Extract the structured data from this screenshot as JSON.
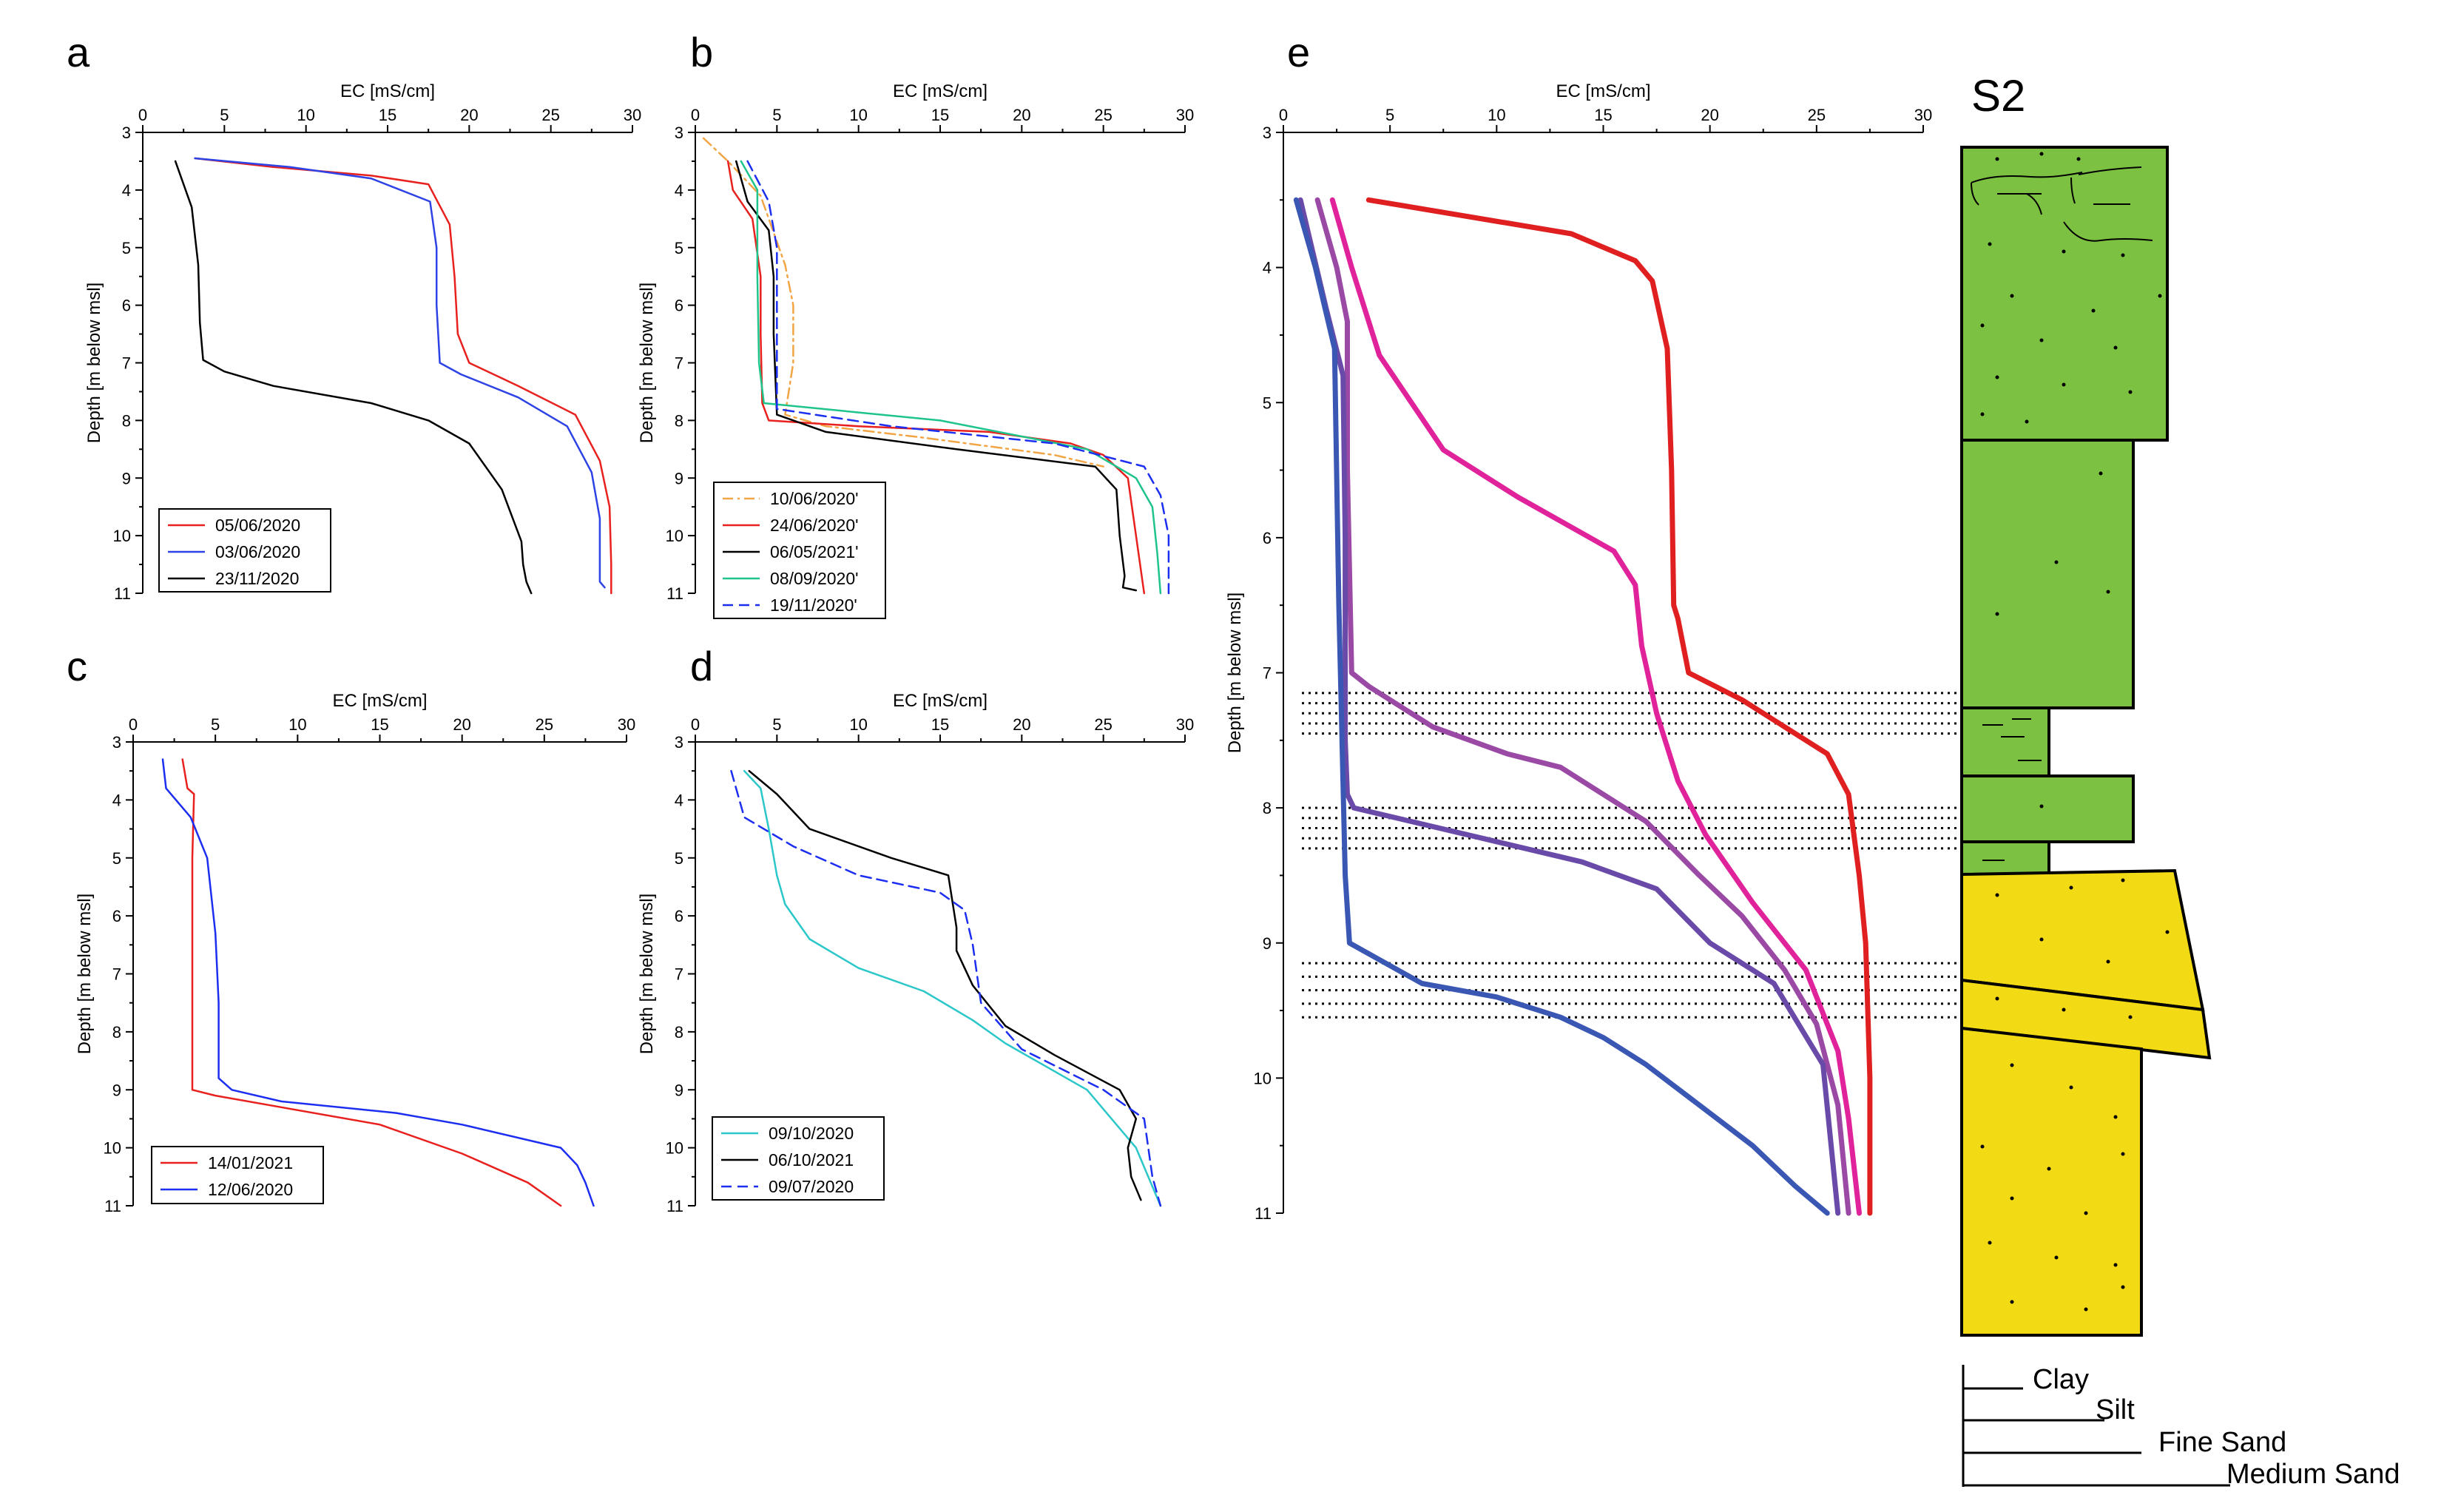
{
  "figure": {
    "strat_column": {
      "title": "S2",
      "grain_sizes": [
        "Clay",
        "Silt",
        "Fine Sand",
        "Medium Sand"
      ],
      "colors": {
        "silt_fill": "#7cc142",
        "sand_fill": "#f2da14",
        "outline": "#000000"
      }
    }
  },
  "chart_data": [
    {
      "id": "a",
      "panel_label": "a",
      "type": "line",
      "xlabel": "EC [mS/cm]",
      "ylabel": "Depth [m below msl]",
      "xlim": [
        0,
        30
      ],
      "ylim": [
        3,
        11
      ],
      "xticks": [
        "0",
        "5",
        "10",
        "15",
        "20",
        "25",
        "30"
      ],
      "yticks": [
        "3",
        "4",
        "5",
        "6",
        "7",
        "8",
        "9",
        "10",
        "11"
      ],
      "series": [
        {
          "name": "05/06/2020",
          "color": "#e8211e",
          "style": "solid",
          "x": [
            3.2,
            8,
            14,
            17.5,
            18.8,
            19.1,
            19.3,
            20,
            23,
            26.5,
            28,
            28.6,
            28.7,
            28.7
          ],
          "y": [
            3.45,
            3.6,
            3.75,
            3.9,
            4.6,
            5.5,
            6.5,
            7.0,
            7.4,
            7.9,
            8.7,
            9.5,
            10.5,
            11.0
          ]
        },
        {
          "name": "03/06/2020",
          "color": "#2d43e6",
          "style": "solid",
          "x": [
            3.2,
            9,
            14,
            17.6,
            18,
            18,
            18.2,
            19.5,
            23,
            26,
            27.5,
            28,
            28,
            28.3
          ],
          "y": [
            3.45,
            3.6,
            3.8,
            4.2,
            5.0,
            6.0,
            7.0,
            7.2,
            7.6,
            8.1,
            8.9,
            9.7,
            10.8,
            10.9
          ]
        },
        {
          "name": "23/11/2020",
          "color": "#000000",
          "style": "solid",
          "x": [
            2,
            3,
            3.4,
            3.5,
            3.7,
            5,
            8,
            14,
            17.5,
            20,
            22,
            22.8,
            23.2,
            23.3,
            23.5,
            23.8
          ],
          "y": [
            3.5,
            4.3,
            5.3,
            6.3,
            6.95,
            7.15,
            7.4,
            7.7,
            8.0,
            8.4,
            9.2,
            9.8,
            10.1,
            10.5,
            10.8,
            11.0
          ]
        }
      ],
      "legend": [
        "05/06/2020",
        "03/06/2020",
        "23/11/2020"
      ]
    },
    {
      "id": "b",
      "panel_label": "b",
      "type": "line",
      "xlabel": "EC [mS/cm]",
      "ylabel": "Depth [m below msl]",
      "xlim": [
        0,
        30
      ],
      "ylim": [
        3,
        11
      ],
      "xticks": [
        "0",
        "5",
        "10",
        "15",
        "20",
        "25",
        "30"
      ],
      "yticks": [
        "3",
        "4",
        "5",
        "6",
        "7",
        "8",
        "9",
        "10",
        "11"
      ],
      "series": [
        {
          "name": "10/06/2020'",
          "color": "#f2a545",
          "style": "dashdot",
          "x": [
            0.5,
            2,
            4,
            5.5,
            6,
            6,
            5.5,
            8,
            14,
            22,
            25
          ],
          "y": [
            3.1,
            3.5,
            4.1,
            5.3,
            6.0,
            7.0,
            7.9,
            8.1,
            8.3,
            8.6,
            8.8
          ]
        },
        {
          "name": "24/06/2020'",
          "color": "#e8211e",
          "style": "solid",
          "x": [
            2,
            2.3,
            3.5,
            4.0,
            4.0,
            4.1,
            4.5,
            10,
            18,
            23,
            25,
            26.5,
            27,
            27.5
          ],
          "y": [
            3.5,
            4.0,
            4.5,
            5.5,
            6.5,
            7.7,
            8.0,
            8.1,
            8.2,
            8.4,
            8.6,
            9.0,
            10.0,
            11.0
          ]
        },
        {
          "name": "06/05/2021'",
          "color": "#000000",
          "style": "solid",
          "x": [
            2.5,
            3.2,
            4.5,
            4.8,
            4.8,
            5.0,
            8,
            16,
            24.5,
            25.8,
            26,
            26.3,
            26.2,
            27
          ],
          "y": [
            3.5,
            4.2,
            4.7,
            5.5,
            6.5,
            7.9,
            8.2,
            8.5,
            8.8,
            9.2,
            10.0,
            10.7,
            10.9,
            10.95
          ]
        },
        {
          "name": "08/09/2020'",
          "color": "#1ec48a",
          "style": "solid",
          "x": [
            2.8,
            3.8,
            3.8,
            3.9,
            4.2,
            15,
            24,
            27,
            28,
            28.3,
            28.5
          ],
          "y": [
            3.5,
            4.0,
            5.5,
            7.0,
            7.7,
            8.0,
            8.5,
            9.0,
            9.5,
            10.3,
            11.0
          ]
        },
        {
          "name": "19/11/2020'",
          "color": "#1c2ef0",
          "style": "dashed",
          "x": [
            3.2,
            4.5,
            5.0,
            5.0,
            5.0,
            12,
            22,
            27.5,
            28.5,
            29,
            29
          ],
          "y": [
            3.5,
            4.2,
            5.0,
            6.5,
            7.8,
            8.1,
            8.4,
            8.8,
            9.3,
            10.0,
            11.0
          ]
        }
      ],
      "legend": [
        "10/06/2020'",
        "24/06/2020'",
        "06/05/2021'",
        "08/09/2020'",
        "19/11/2020'"
      ]
    },
    {
      "id": "c",
      "panel_label": "c",
      "type": "line",
      "xlabel": "EC [mS/cm]",
      "ylabel": "Depth [m below msl]",
      "xlim": [
        0,
        30
      ],
      "ylim": [
        3,
        11
      ],
      "xticks": [
        "0",
        "5",
        "10",
        "15",
        "20",
        "25",
        "30"
      ],
      "yticks": [
        "3",
        "4",
        "5",
        "6",
        "7",
        "8",
        "9",
        "10",
        "11"
      ],
      "series": [
        {
          "name": "14/01/2021",
          "color": "#e8211e",
          "style": "solid",
          "x": [
            3,
            3.3,
            3.7,
            3.6,
            3.6,
            3.6,
            3.6,
            5,
            9,
            15,
            20,
            24,
            26
          ],
          "y": [
            3.3,
            3.8,
            3.9,
            5.0,
            7.0,
            8.5,
            9.0,
            9.1,
            9.3,
            9.6,
            10.1,
            10.6,
            11.0
          ]
        },
        {
          "name": "12/06/2020",
          "color": "#1c2ef0",
          "style": "solid",
          "x": [
            1.8,
            2.0,
            3.5,
            4.5,
            5.0,
            5.2,
            5.2,
            6,
            9,
            16,
            20,
            26,
            27,
            27.5,
            28
          ],
          "y": [
            3.3,
            3.8,
            4.3,
            5.0,
            6.3,
            7.5,
            8.8,
            9.0,
            9.2,
            9.4,
            9.6,
            10.0,
            10.3,
            10.6,
            11.0
          ]
        }
      ],
      "legend": [
        "14/01/2021",
        "12/06/2020"
      ]
    },
    {
      "id": "d",
      "panel_label": "d",
      "type": "line",
      "xlabel": "EC [mS/cm]",
      "ylabel": "Depth [m below msl]",
      "xlim": [
        0,
        30
      ],
      "ylim": [
        3,
        11
      ],
      "xticks": [
        "0",
        "5",
        "10",
        "15",
        "20",
        "25",
        "30"
      ],
      "yticks": [
        "3",
        "4",
        "5",
        "6",
        "7",
        "8",
        "9",
        "10",
        "11"
      ],
      "series": [
        {
          "name": "09/10/2020",
          "color": "#2bc7c9",
          "style": "solid",
          "x": [
            3,
            4,
            4.5,
            5.0,
            5.5,
            7,
            10,
            14,
            17,
            19,
            24,
            27,
            28.5
          ],
          "y": [
            3.5,
            3.8,
            4.5,
            5.3,
            5.8,
            6.4,
            6.9,
            7.3,
            7.8,
            8.2,
            9.0,
            10.0,
            11.0
          ]
        },
        {
          "name": "06/10/2021",
          "color": "#000000",
          "style": "solid",
          "x": [
            3.3,
            5,
            7,
            12,
            15.5,
            16,
            16,
            17,
            19,
            22,
            26,
            27,
            26.5,
            26.7,
            27.3
          ],
          "y": [
            3.5,
            3.9,
            4.5,
            5.0,
            5.3,
            6.2,
            6.6,
            7.2,
            7.9,
            8.4,
            9.0,
            9.5,
            10.0,
            10.5,
            10.9
          ]
        },
        {
          "name": "09/07/2020",
          "color": "#1c2ef0",
          "style": "dashed",
          "x": [
            2.2,
            3,
            6,
            10,
            15,
            16.5,
            17,
            17.5,
            20,
            25,
            27.5,
            28,
            28.5
          ],
          "y": [
            3.5,
            4.3,
            4.8,
            5.3,
            5.6,
            5.9,
            6.5,
            7.5,
            8.3,
            9.0,
            9.5,
            10.5,
            11.0
          ]
        }
      ],
      "legend": [
        "09/10/2020",
        "06/10/2021",
        "09/07/2020"
      ]
    },
    {
      "id": "e",
      "panel_label": "e",
      "type": "line",
      "xlabel": "EC [mS/cm]",
      "ylabel": "Depth [m below msl]",
      "xlim": [
        0,
        30
      ],
      "ylim": [
        3,
        11
      ],
      "xticks": [
        "0",
        "5",
        "10",
        "15",
        "20",
        "25",
        "30"
      ],
      "yticks": [
        "3",
        "4",
        "5",
        "6",
        "7",
        "8",
        "9",
        "10",
        "11"
      ],
      "series": [
        {
          "name": "red",
          "color": "#e02020",
          "x": [
            4,
            13.5,
            16.5,
            17.3,
            18,
            18.2,
            18.3,
            18.5,
            19,
            21.5,
            23.5,
            25.5,
            26.5,
            27,
            27.3,
            27.5,
            27.5
          ],
          "y": [
            3.5,
            3.75,
            3.95,
            4.1,
            4.6,
            5.5,
            6.5,
            6.6,
            7.0,
            7.2,
            7.4,
            7.6,
            7.9,
            8.5,
            9.0,
            10.0,
            11.0
          ]
        },
        {
          "name": "magenta",
          "color": "#e0229b",
          "x": [
            2.3,
            3.2,
            4.5,
            7.5,
            11,
            15.5,
            16.5,
            16.8,
            17.5,
            18.5,
            19.8,
            22,
            24.5,
            26,
            26.5,
            27
          ],
          "y": [
            3.5,
            4.0,
            4.65,
            5.35,
            5.7,
            6.1,
            6.35,
            6.8,
            7.3,
            7.8,
            8.2,
            8.7,
            9.2,
            9.8,
            10.3,
            11.0
          ]
        },
        {
          "name": "purple",
          "color": "#9a4aa5",
          "x": [
            1.6,
            2.5,
            3.0,
            3.0,
            3.2,
            4,
            7,
            10.5,
            13,
            17,
            19.5,
            21.5,
            23.5,
            25,
            26,
            26.5
          ],
          "y": [
            3.5,
            4.0,
            4.4,
            5.5,
            7.0,
            7.1,
            7.4,
            7.6,
            7.7,
            8.1,
            8.5,
            8.8,
            9.2,
            9.6,
            10.2,
            11.0
          ]
        },
        {
          "name": "indigo",
          "color": "#6a4aa8",
          "x": [
            0.8,
            2,
            2.8,
            2.9,
            2.9,
            3,
            3.3,
            10,
            14,
            17.5,
            20,
            23,
            25.3,
            26
          ],
          "y": [
            3.5,
            4.3,
            4.8,
            6.0,
            7.5,
            7.9,
            8.0,
            8.25,
            8.4,
            8.6,
            9.0,
            9.3,
            9.9,
            11.0
          ]
        },
        {
          "name": "blue",
          "color": "#3a57b4",
          "x": [
            0.6,
            1.5,
            2.4,
            2.6,
            2.9,
            3.1,
            6.5,
            10,
            13,
            15,
            17,
            19.5,
            22,
            24,
            25.5
          ],
          "y": [
            3.5,
            4.0,
            4.6,
            6.5,
            8.5,
            9.0,
            9.3,
            9.4,
            9.55,
            9.7,
            9.9,
            10.2,
            10.5,
            10.8,
            11.0
          ]
        }
      ],
      "sand_layers_depth_m": [
        [
          7.15,
          7.45
        ],
        [
          8.0,
          8.3
        ],
        [
          9.15,
          9.55
        ]
      ],
      "legend": []
    }
  ]
}
